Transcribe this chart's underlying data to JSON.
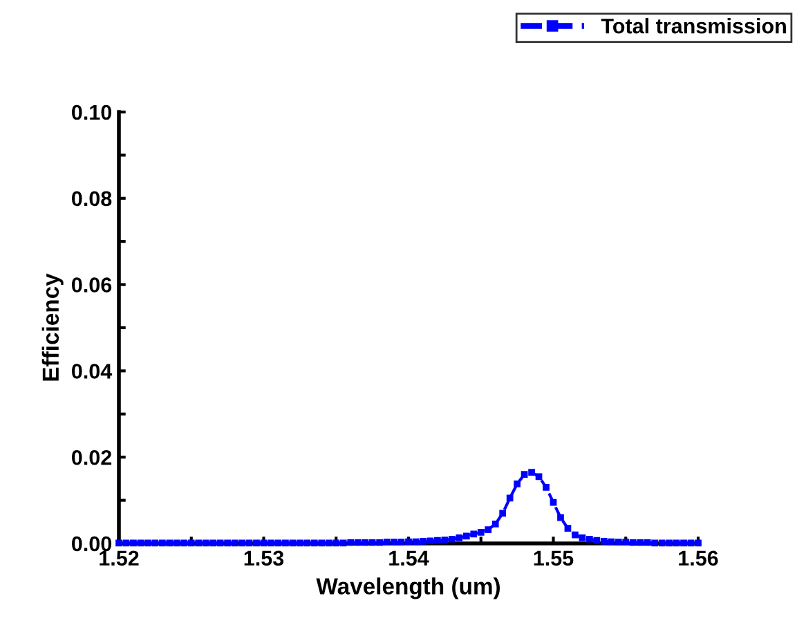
{
  "chart_data": {
    "type": "line",
    "xlabel": "Wavelength (um)",
    "ylabel": "Efficiency",
    "x": [
      1.52,
      1.5205,
      1.521,
      1.5215,
      1.522,
      1.5225,
      1.523,
      1.5235,
      1.524,
      1.5245,
      1.525,
      1.5255,
      1.526,
      1.5265,
      1.527,
      1.5275,
      1.528,
      1.5285,
      1.529,
      1.5295,
      1.53,
      1.5305,
      1.531,
      1.5315,
      1.532,
      1.5325,
      1.533,
      1.5335,
      1.534,
      1.5345,
      1.535,
      1.5355,
      1.536,
      1.5365,
      1.537,
      1.5375,
      1.538,
      1.5385,
      1.539,
      1.5395,
      1.54,
      1.5405,
      1.541,
      1.5415,
      1.542,
      1.5425,
      1.543,
      1.5435,
      1.544,
      1.5445,
      1.545,
      1.5455,
      1.546,
      1.5465,
      1.547,
      1.5475,
      1.548,
      1.5485,
      1.549,
      1.5495,
      1.55,
      1.5505,
      1.551,
      1.5515,
      1.552,
      1.5525,
      1.553,
      1.5535,
      1.554,
      1.5545,
      1.555,
      1.5555,
      1.556,
      1.5565,
      1.557,
      1.5575,
      1.558,
      1.5585,
      1.559,
      1.5595,
      1.56
    ],
    "series": [
      {
        "name": "Total transmission",
        "color": "#0000ff",
        "values": [
          0.0001,
          0.0001,
          0.0001,
          0.0001,
          0.0001,
          0.0001,
          0.0001,
          0.0001,
          0.0001,
          0.0001,
          0.0001,
          0.0001,
          0.0001,
          0.0001,
          0.0001,
          0.0001,
          0.0001,
          0.0001,
          0.0001,
          0.0001,
          0.0001,
          0.0001,
          0.0001,
          0.0001,
          0.0001,
          0.0001,
          0.0001,
          0.0001,
          0.0001,
          0.0001,
          0.0001,
          0.0001,
          0.0002,
          0.0002,
          0.0002,
          0.0002,
          0.0002,
          0.0003,
          0.0003,
          0.0003,
          0.0004,
          0.0004,
          0.0005,
          0.0006,
          0.0007,
          0.0008,
          0.001,
          0.0013,
          0.0017,
          0.0022,
          0.0026,
          0.0032,
          0.0045,
          0.007,
          0.0105,
          0.0138,
          0.016,
          0.0165,
          0.0155,
          0.013,
          0.0095,
          0.006,
          0.0035,
          0.002,
          0.0013,
          0.001,
          0.0007,
          0.0005,
          0.0004,
          0.0003,
          0.0003,
          0.0002,
          0.0002,
          0.0002,
          0.0001,
          0.0001,
          0.0001,
          0.0001,
          0.0001,
          0.0001,
          0.0001
        ]
      }
    ],
    "xlim": [
      1.52,
      1.56
    ],
    "xticks": [
      1.52,
      {
        "value": 1.525,
        "label": null
      },
      1.53,
      {
        "value": 1.535,
        "label": null
      },
      1.54,
      {
        "value": 1.545,
        "label": null
      },
      1.55,
      {
        "value": 1.555,
        "label": null
      },
      1.56
    ],
    "ylim": [
      0,
      0.1
    ],
    "yticks": [
      "0.00",
      {
        "value": 0.01,
        "label": null
      },
      {
        "value": 0.02,
        "label": "0.02"
      },
      {
        "value": 0.03,
        "label": null
      },
      {
        "value": 0.04,
        "label": "0.04"
      },
      {
        "value": 0.05,
        "label": null
      },
      {
        "value": 0.06,
        "label": "0.06"
      },
      {
        "value": 0.07,
        "label": null
      },
      {
        "value": 0.08,
        "label": "0.08"
      },
      {
        "value": 0.09,
        "label": null
      },
      {
        "value": 0.1,
        "label": "0.10"
      }
    ],
    "marker": "square",
    "line_style": "dashed",
    "legend": "top right",
    "grid": false
  }
}
